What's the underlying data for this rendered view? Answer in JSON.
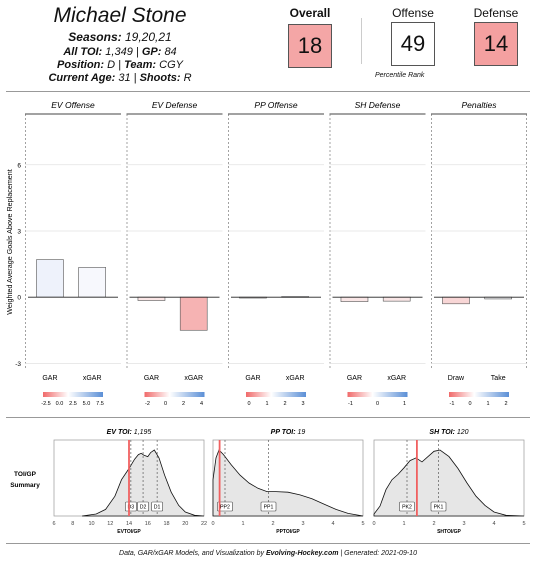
{
  "player": {
    "name": "Michael Stone",
    "seasons_label": "Seasons:",
    "seasons_value": "19,20,21",
    "toi_label": "All TOI:",
    "toi_value": "1,349",
    "gp_label": "GP:",
    "gp_value": "84",
    "position_label": "Position:",
    "position_value": "D",
    "team_label": "Team:",
    "team_value": "CGY",
    "age_label": "Current Age:",
    "age_value": "31",
    "shoots_label": "Shoots:",
    "shoots_value": "R"
  },
  "scores": {
    "overall_label": "Overall",
    "overall_value": "18",
    "offense_label": "Offense",
    "offense_value": "49",
    "defense_label": "Defense",
    "defense_value": "14",
    "percentile_label": "Percentile Rank",
    "colors": {
      "overall": "#f4a6a6",
      "offense": "#ffffff",
      "defense": "#f4a0a0"
    }
  },
  "chart_data": [
    {
      "type": "bar",
      "ylabel": "Weighted Average Goals Above Replacement",
      "ylim": [
        -3.3,
        8.3
      ],
      "yticks": [
        -3,
        0,
        3,
        6
      ],
      "grid": true,
      "panels": [
        {
          "title": "EV Offense",
          "categories": [
            "GAR",
            "xGAR"
          ],
          "values": [
            1.7,
            1.35
          ],
          "colors": [
            "#eef2fb",
            "#f7f8fd"
          ],
          "legend_ticks": [
            "-2.5",
            "0.0",
            "2.5",
            "5.0",
            "7.5"
          ]
        },
        {
          "title": "EV Defense",
          "categories": [
            "GAR",
            "xGAR"
          ],
          "values": [
            -0.15,
            -1.5
          ],
          "colors": [
            "#fbe7e7",
            "#f6b3b3"
          ],
          "legend_ticks": [
            "-2",
            "0",
            "2",
            "4"
          ]
        },
        {
          "title": "PP Offense",
          "categories": [
            "GAR",
            "xGAR"
          ],
          "values": [
            -0.04,
            0.03
          ],
          "colors": [
            "#fdf2f2",
            "#f7f9fd"
          ],
          "legend_ticks": [
            "0",
            "1",
            "2",
            "3"
          ]
        },
        {
          "title": "SH Defense",
          "categories": [
            "GAR",
            "xGAR"
          ],
          "values": [
            -0.2,
            -0.18
          ],
          "colors": [
            "#f9e6e6",
            "#f9e6e6"
          ],
          "legend_ticks": [
            "-1",
            "0",
            "1"
          ]
        },
        {
          "title": "Penalties",
          "categories": [
            "Draw",
            "Take"
          ],
          "values": [
            -0.3,
            -0.08
          ],
          "colors": [
            "#f8d6d6",
            "#f7f7fb"
          ],
          "legend_ticks": [
            "-1",
            "0",
            "1",
            "2"
          ]
        }
      ]
    },
    {
      "type": "area",
      "side_label": [
        "TOI/GP",
        "Summary"
      ],
      "panels": [
        {
          "title_label": "EV TOI:",
          "title_value": "1,195",
          "xlabel": "EVTOI/GP",
          "xlim": [
            6,
            22
          ],
          "xticks": [
            6,
            8,
            10,
            12,
            14,
            16,
            18,
            20,
            22
          ],
          "player_value": 14.0,
          "markers": [
            {
              "label": "D3",
              "x": 14.2
            },
            {
              "label": "D2",
              "x": 15.5
            },
            {
              "label": "D1",
              "x": 17.0
            }
          ],
          "density": [
            [
              9,
              0.0
            ],
            [
              10.5,
              0.03
            ],
            [
              11.5,
              0.1
            ],
            [
              12.5,
              0.3
            ],
            [
              13.2,
              0.55
            ],
            [
              14,
              0.72
            ],
            [
              14.6,
              0.86
            ],
            [
              15.0,
              0.93
            ],
            [
              15.3,
              0.95
            ],
            [
              15.6,
              0.92
            ],
            [
              16.0,
              0.9
            ],
            [
              16.3,
              0.96
            ],
            [
              16.7,
              1.0
            ],
            [
              17.2,
              0.88
            ],
            [
              17.8,
              0.62
            ],
            [
              18.5,
              0.36
            ],
            [
              19.3,
              0.16
            ],
            [
              20,
              0.06
            ],
            [
              21,
              0.01
            ],
            [
              22,
              0.0
            ]
          ]
        },
        {
          "title_label": "PP TOI:",
          "title_value": "19",
          "xlabel": "PPTOI/GP",
          "xlim": [
            0,
            5
          ],
          "xticks": [
            0,
            1,
            2,
            3,
            4,
            5
          ],
          "player_value": 0.22,
          "markers": [
            {
              "label": "PP2",
              "x": 0.4
            },
            {
              "label": "PP1",
              "x": 1.85
            }
          ],
          "density": [
            [
              0.0,
              0.55
            ],
            [
              0.1,
              0.88
            ],
            [
              0.2,
              1.0
            ],
            [
              0.35,
              0.93
            ],
            [
              0.6,
              0.78
            ],
            [
              0.9,
              0.62
            ],
            [
              1.2,
              0.5
            ],
            [
              1.5,
              0.42
            ],
            [
              1.8,
              0.37
            ],
            [
              2.1,
              0.37
            ],
            [
              2.5,
              0.36
            ],
            [
              2.9,
              0.32
            ],
            [
              3.3,
              0.26
            ],
            [
              3.7,
              0.18
            ],
            [
              4.1,
              0.1
            ],
            [
              4.5,
              0.04
            ],
            [
              5.0,
              0.0
            ]
          ]
        },
        {
          "title_label": "SH TOI:",
          "title_value": "120",
          "xlabel": "SHTOI/GP",
          "xlim": [
            0,
            5
          ],
          "xticks": [
            0,
            1,
            2,
            3,
            4,
            5
          ],
          "player_value": 1.43,
          "markers": [
            {
              "label": "PK2",
              "x": 1.1
            },
            {
              "label": "PK1",
              "x": 2.15
            }
          ],
          "density": [
            [
              0.0,
              0.03
            ],
            [
              0.2,
              0.15
            ],
            [
              0.4,
              0.4
            ],
            [
              0.6,
              0.55
            ],
            [
              0.8,
              0.63
            ],
            [
              1.0,
              0.73
            ],
            [
              1.2,
              0.84
            ],
            [
              1.4,
              0.88
            ],
            [
              1.6,
              0.82
            ],
            [
              1.8,
              0.9
            ],
            [
              2.0,
              0.98
            ],
            [
              2.2,
              1.0
            ],
            [
              2.5,
              0.9
            ],
            [
              2.8,
              0.72
            ],
            [
              3.1,
              0.5
            ],
            [
              3.4,
              0.3
            ],
            [
              3.7,
              0.16
            ],
            [
              4.0,
              0.06
            ],
            [
              4.4,
              0.01
            ],
            [
              5.0,
              0.0
            ]
          ]
        }
      ]
    }
  ],
  "footer": {
    "prefix": "Data,  GAR/xGAR Models,  and Visualization   by",
    "site": "Evolving-Hockey.com",
    "generated": "| Generated:  2021-09-10"
  }
}
